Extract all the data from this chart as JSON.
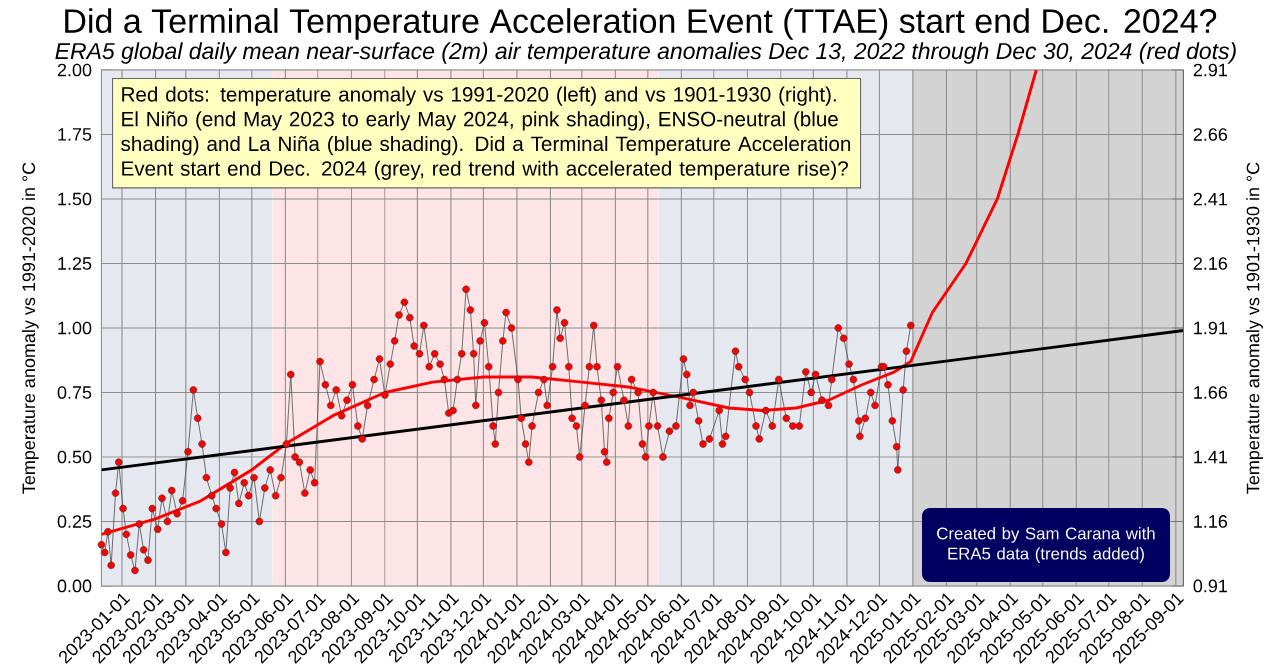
{
  "chart_data": {
    "type": "line",
    "title": "Did a Terminal Temperature Acceleration Event (TTAE) start end Dec. 2024?",
    "subtitle": "ERA5 global daily mean near-surface (2m) air temperature anomalies Dec 13, 2022 through Dec 30, 2024 (red dots)",
    "ylabel": "Temperature anomaly vs 1991-2020 in °C",
    "y2label": "Temperature anomaly vs 1901-1930 in °C",
    "annotations": [
      "Red dots: temperature anomaly vs 1991-2020 (left) and vs 1901-1930 (right). El Niño (end May 2023 to early May 2024, pink shading), ENSO-neutral (blue shading) and La Niña (blue shading). Did a Terminal Temperature Acceleration Event start end Dec. 2024 (grey, red trend with accelerated temperature rise)?",
      "Created by Sam Carana with ERA5 data (trends added)"
    ],
    "xlim": [
      "2022-12-13",
      "2025-09-08"
    ],
    "xticks": [
      "2023-01-01",
      "2023-02-01",
      "2023-03-01",
      "2023-04-01",
      "2023-05-01",
      "2023-06-01",
      "2023-07-01",
      "2023-08-01",
      "2023-09-01",
      "2023-10-01",
      "2023-11-01",
      "2023-12-01",
      "2024-01-01",
      "2024-02-01",
      "2024-03-01",
      "2024-04-01",
      "2024-05-01",
      "2024-06-01",
      "2024-07-01",
      "2024-08-01",
      "2024-09-01",
      "2024-10-01",
      "2024-11-01",
      "2024-12-01",
      "2025-01-01",
      "2025-02-01",
      "2025-03-01",
      "2025-04-01",
      "2025-05-01",
      "2025-06-01",
      "2025-07-01",
      "2025-08-01",
      "2025-09-01"
    ],
    "ylim": [
      0,
      2
    ],
    "yticks": [
      {
        "value": 0,
        "label": "0.00"
      },
      0.25,
      {
        "value": 0.5,
        "label": "0.50"
      },
      0.75,
      {
        "value": 1,
        "label": "1.00"
      },
      1.25,
      {
        "value": 1.5,
        "label": "1.50"
      },
      1.75,
      {
        "value": 2,
        "label": "2.00"
      }
    ],
    "y2lim": [
      0.91,
      2.91
    ],
    "y2ticks": [
      0.91,
      1.16,
      1.41,
      1.66,
      1.91,
      2.16,
      2.41,
      2.66,
      2.91
    ],
    "grid": true,
    "bands": [
      {
        "axis": "x",
        "from": "2022-12-13",
        "to": "2023-05-20",
        "color": "#e6e8ef"
      },
      {
        "axis": "x",
        "from": "2023-05-20",
        "to": "2024-05-11",
        "color": "#fde4e6"
      },
      {
        "axis": "x",
        "from": "2024-05-11",
        "to": "2024-12-31",
        "color": "#e6e8ef"
      },
      {
        "axis": "x",
        "from": "2024-12-31",
        "to": "2025-09-08",
        "color": "#d3d3d3"
      }
    ],
    "series": [
      {
        "color": "#ff0000",
        "marker": "circle",
        "x": [
          "2022-12-13",
          "2022-12-16",
          "2022-12-19",
          "2022-12-22",
          "2022-12-26",
          "2022-12-29",
          "2023-01-02",
          "2023-01-05",
          "2023-01-09",
          "2023-01-13",
          "2023-01-17",
          "2023-01-21",
          "2023-01-25",
          "2023-01-29",
          "2023-02-03",
          "2023-02-07",
          "2023-02-12",
          "2023-02-16",
          "2023-02-21",
          "2023-02-26",
          "2023-03-03",
          "2023-03-08",
          "2023-03-12",
          "2023-03-16",
          "2023-03-20",
          "2023-03-25",
          "2023-03-29",
          "2023-04-03",
          "2023-04-07",
          "2023-04-11",
          "2023-04-15",
          "2023-04-19",
          "2023-04-24",
          "2023-04-28",
          "2023-05-03",
          "2023-05-08",
          "2023-05-13",
          "2023-05-18",
          "2023-05-23",
          "2023-05-28",
          "2023-06-02",
          "2023-06-06",
          "2023-06-10",
          "2023-06-14",
          "2023-06-19",
          "2023-06-24",
          "2023-06-28",
          "2023-07-03",
          "2023-07-08",
          "2023-07-13",
          "2023-07-18",
          "2023-07-23",
          "2023-07-28",
          "2023-08-02",
          "2023-08-07",
          "2023-08-11",
          "2023-08-16",
          "2023-08-22",
          "2023-08-27",
          "2023-09-01",
          "2023-09-06",
          "2023-09-10",
          "2023-09-14",
          "2023-09-19",
          "2023-09-24",
          "2023-09-28",
          "2023-10-03",
          "2023-10-07",
          "2023-10-12",
          "2023-10-17",
          "2023-10-22",
          "2023-10-26",
          "2023-10-30",
          "2023-11-03",
          "2023-11-07",
          "2023-11-11",
          "2023-11-15",
          "2023-11-19",
          "2023-11-22",
          "2023-11-24",
          "2023-11-28",
          "2023-12-02",
          "2023-12-06",
          "2023-12-10",
          "2023-12-12",
          "2023-12-15",
          "2023-12-19",
          "2023-12-22",
          "2023-12-27",
          "2024-01-02",
          "2024-01-05",
          "2024-01-09",
          "2024-01-12",
          "2024-01-15",
          "2024-01-21",
          "2024-01-26",
          "2024-01-29",
          "2024-02-03",
          "2024-02-07",
          "2024-02-10",
          "2024-02-14",
          "2024-02-18",
          "2024-02-21",
          "2024-02-25",
          "2024-02-28",
          "2024-03-04",
          "2024-03-08",
          "2024-03-12",
          "2024-03-15",
          "2024-03-19",
          "2024-03-22",
          "2024-03-24",
          "2024-03-26",
          "2024-03-30",
          "2024-04-03",
          "2024-04-09",
          "2024-04-13",
          "2024-04-16",
          "2024-04-22",
          "2024-04-26",
          "2024-04-29",
          "2024-05-02",
          "2024-05-06",
          "2024-05-10",
          "2024-05-15",
          "2024-05-21",
          "2024-05-27",
          "2024-06-03",
          "2024-06-06",
          "2024-06-09",
          "2024-06-12",
          "2024-06-17",
          "2024-06-21",
          "2024-06-27",
          "2024-07-06",
          "2024-07-09",
          "2024-07-12",
          "2024-07-21",
          "2024-07-24",
          "2024-07-30",
          "2024-08-03",
          "2024-08-09",
          "2024-08-12",
          "2024-08-18",
          "2024-08-24",
          "2024-08-30",
          "2024-09-06",
          "2024-09-12",
          "2024-09-18",
          "2024-09-24",
          "2024-09-29",
          "2024-10-03",
          "2024-10-09",
          "2024-10-15",
          "2024-10-18",
          "2024-10-24",
          "2024-10-29",
          "2024-11-03",
          "2024-11-07",
          "2024-11-12",
          "2024-11-13",
          "2024-11-18",
          "2024-11-23",
          "2024-11-27",
          "2024-12-03",
          "2024-12-05",
          "2024-12-09",
          "2024-12-13",
          "2024-12-17",
          "2024-12-18",
          "2024-12-23",
          "2024-12-26",
          "2024-12-30"
        ],
        "values": [
          0.16,
          0.13,
          0.21,
          0.08,
          0.36,
          0.48,
          0.3,
          0.2,
          0.12,
          0.06,
          0.24,
          0.14,
          0.1,
          0.3,
          0.22,
          0.34,
          0.25,
          0.37,
          0.28,
          0.33,
          0.52,
          0.76,
          0.65,
          0.55,
          0.42,
          0.35,
          0.3,
          0.24,
          0.13,
          0.38,
          0.44,
          0.32,
          0.4,
          0.35,
          0.42,
          0.25,
          0.38,
          0.45,
          0.35,
          0.42,
          0.55,
          0.82,
          0.5,
          0.48,
          0.36,
          0.45,
          0.4,
          0.87,
          0.78,
          0.7,
          0.76,
          0.66,
          0.72,
          0.78,
          0.62,
          0.57,
          0.7,
          0.8,
          0.88,
          0.74,
          0.86,
          0.95,
          1.05,
          1.1,
          1.04,
          0.93,
          0.9,
          1.01,
          0.85,
          0.9,
          0.86,
          0.8,
          0.67,
          0.68,
          0.8,
          0.9,
          1.15,
          1.07,
          0.9,
          0.7,
          0.95,
          1.02,
          0.85,
          0.62,
          0.55,
          0.75,
          0.95,
          1.06,
          1.0,
          0.8,
          0.65,
          0.55,
          0.48,
          0.62,
          0.75,
          0.8,
          0.7,
          0.85,
          1.07,
          0.96,
          1.02,
          0.85,
          0.65,
          0.62,
          0.5,
          0.7,
          0.85,
          1.01,
          0.85,
          0.72,
          0.52,
          0.48,
          0.65,
          0.75,
          0.85,
          0.72,
          0.62,
          0.8,
          0.75,
          0.55,
          0.5,
          0.62,
          0.75,
          0.62,
          0.5,
          0.6,
          0.62,
          0.88,
          0.82,
          0.7,
          0.75,
          0.64,
          0.55,
          0.57,
          0.68,
          0.55,
          0.58,
          0.91,
          0.85,
          0.8,
          0.75,
          0.62,
          0.57,
          0.68,
          0.62,
          0.8,
          0.65,
          0.62,
          0.62,
          0.83,
          0.75,
          0.82,
          0.72,
          0.7,
          0.8,
          1.0,
          0.96,
          0.86,
          0.8,
          0.64,
          0.58,
          0.65,
          0.75,
          0.7,
          0.85,
          0.85,
          0.78,
          0.64,
          0.54,
          0.45,
          0.76,
          0.91,
          1.01
        ]
      },
      {
        "color": "#ff0000",
        "marker": "none",
        "x": [
          "2022-12-13",
          "2023-02-01",
          "2023-03-15",
          "2023-05-01",
          "2023-06-01",
          "2023-07-15",
          "2023-09-01",
          "2023-10-15",
          "2023-12-01",
          "2024-01-15",
          "2024-03-01",
          "2024-04-15",
          "2024-06-01",
          "2024-07-15",
          "2024-08-15",
          "2024-09-15",
          "2024-10-15",
          "2024-11-15",
          "2024-12-15",
          "2024-12-30",
          "2025-01-19",
          "2025-02-19",
          "2025-03-20",
          "2025-04-08",
          "2025-04-25"
        ],
        "values": [
          0.2,
          0.26,
          0.33,
          0.45,
          0.55,
          0.66,
          0.75,
          0.79,
          0.81,
          0.81,
          0.79,
          0.77,
          0.73,
          0.69,
          0.68,
          0.69,
          0.72,
          0.78,
          0.83,
          0.87,
          1.06,
          1.25,
          1.5,
          1.75,
          2.0
        ]
      },
      {
        "color": "#000000",
        "marker": "none",
        "x": [
          "2022-12-13",
          "2025-09-08"
        ],
        "values": [
          0.45,
          0.99
        ]
      }
    ]
  }
}
